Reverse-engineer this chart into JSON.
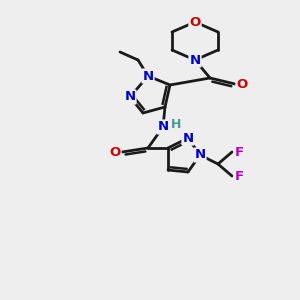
{
  "background_color": "#eeeeee",
  "bond_color": "#1a1a1a",
  "atom_colors": {
    "N": "#0000cc",
    "O": "#cc0000",
    "F": "#bb00bb",
    "H": "#4a9a9a",
    "C": "#1a1a1a"
  },
  "figsize": [
    3.0,
    3.0
  ],
  "dpi": 100
}
